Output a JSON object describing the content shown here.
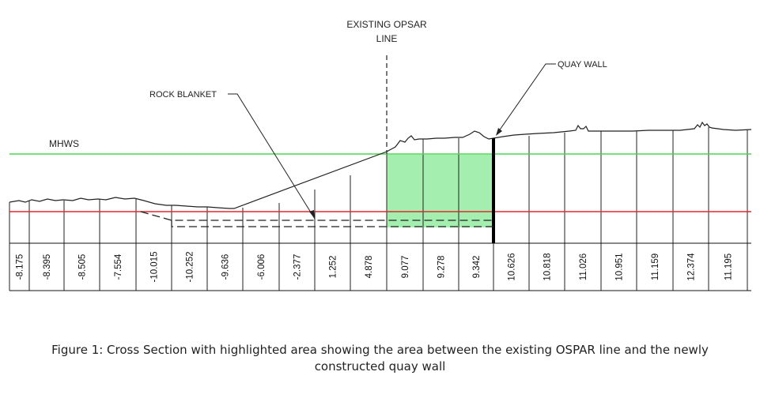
{
  "labels": {
    "opsar_line_1": "EXISTING OPSAR",
    "opsar_line_2": "LINE",
    "quay_wall": "QUAY WALL",
    "rock_blanket": "ROCK BLANKET",
    "mhws": "MHWS"
  },
  "chainage_values": [
    "-8.175",
    "-8.395",
    "-8.505",
    "-7.554",
    "-10.015",
    "-10.252",
    "-9.636",
    "-6.006",
    "-2.377",
    "1.252",
    "4.878",
    "9.077",
    "9.278",
    "9.342",
    "10.626",
    "10.818",
    "11.026",
    "10.951",
    "11.159",
    "12.374",
    "11.195"
  ],
  "colors": {
    "mhws_line": "#49d64f",
    "lower_level_line": "#e0282e",
    "highlight_fill": "#a4efb0",
    "ink": "#111111"
  },
  "caption": {
    "line1": "Figure 1: Cross Section with highlighted area showing the area between the existing OSPAR line and the newly",
    "line2": "constructed quay wall"
  }
}
